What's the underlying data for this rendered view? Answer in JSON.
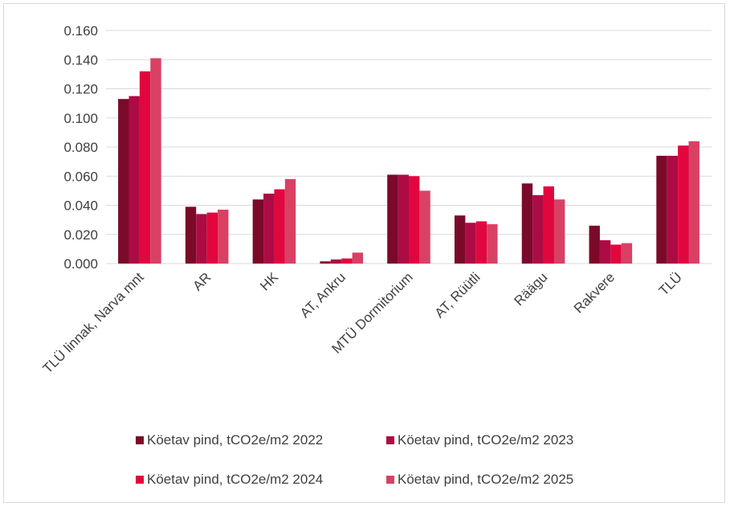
{
  "chart_data": {
    "type": "bar",
    "title": "",
    "xlabel": "",
    "ylabel": "",
    "ylim": [
      0,
      0.16
    ],
    "y_ticks": [
      "0.000",
      "0.020",
      "0.040",
      "0.060",
      "0.080",
      "0.100",
      "0.120",
      "0.140",
      "0.160"
    ],
    "grid": true,
    "legend_position": "bottom",
    "categories": [
      "TLÜ linnak, Narva mnt",
      "AR",
      "HK",
      "AT, Ankru",
      "MTÜ Dormitorium",
      "AT, Rüütli",
      "Räägu",
      "Rakvere",
      "TLÜ"
    ],
    "series": [
      {
        "name": "Köetav pind, tCO2e/m2 2022",
        "color": "#7b0a2a",
        "values": [
          0.113,
          0.039,
          0.044,
          0.0015,
          0.061,
          0.033,
          0.055,
          0.026,
          0.074
        ]
      },
      {
        "name": "Köetav pind, tCO2e/m2 2023",
        "color": "#ad0b43",
        "values": [
          0.115,
          0.034,
          0.048,
          0.0028,
          0.061,
          0.028,
          0.047,
          0.016,
          0.074
        ]
      },
      {
        "name": "Köetav pind, tCO2e/m2 2024",
        "color": "#e2063f",
        "values": [
          0.132,
          0.035,
          0.051,
          0.0035,
          0.06,
          0.029,
          0.053,
          0.013,
          0.081
        ]
      },
      {
        "name": "Köetav pind, tCO2e/m2 2025",
        "color": "#d94064",
        "values": [
          0.141,
          0.037,
          0.058,
          0.0075,
          0.05,
          0.027,
          0.044,
          0.014,
          0.084
        ]
      }
    ]
  }
}
